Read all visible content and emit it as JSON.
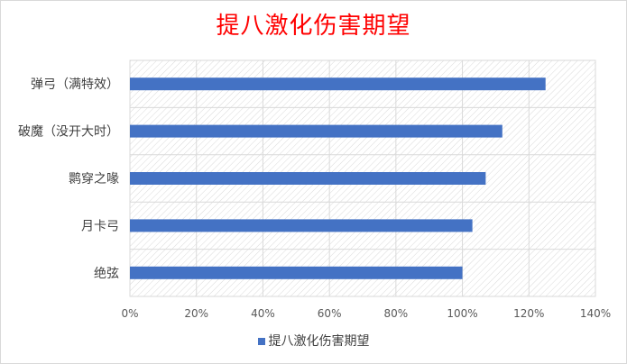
{
  "title": "提八激化伤害期望",
  "colors": {
    "bar": "#4472c4",
    "title": "#ff0000",
    "grid": "#d9d9d9"
  },
  "legend": {
    "label": "提八激化伤害期望",
    "placement": "bottom"
  },
  "chart_data": {
    "type": "bar",
    "orientation": "horizontal",
    "title": "提八激化伤害期望",
    "categories": [
      "弹弓（满特效）",
      "破魔（没开大时）",
      "鹮穿之喙",
      "月卡弓",
      "绝弦"
    ],
    "series": [
      {
        "name": "提八激化伤害期望",
        "values": [
          125,
          112,
          107,
          103,
          100
        ]
      }
    ],
    "x_unit": "%",
    "xlim": [
      0,
      140
    ],
    "x_ticks": [
      0,
      20,
      40,
      60,
      80,
      100,
      120,
      140
    ],
    "x_tick_labels": [
      "0%",
      "20%",
      "40%",
      "60%",
      "80%",
      "100%",
      "120%",
      "140%"
    ],
    "grid": true,
    "legend_position": "bottom"
  }
}
